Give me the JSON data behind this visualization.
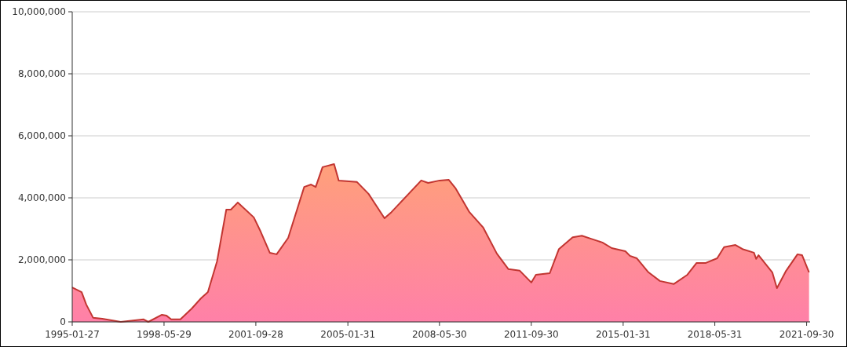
{
  "chart_data": {
    "type": "area",
    "x": [
      "1995-01-27",
      "1995-06",
      "1995-08",
      "1995-11",
      "1996-03",
      "1996-11",
      "1997-09",
      "1997-11",
      "1998-05",
      "1998-07",
      "1998-09",
      "1999-01",
      "1999-06",
      "1999-10",
      "2000-01",
      "2000-05",
      "2000-09",
      "2000-11",
      "2001-02",
      "2001-09",
      "2001-12",
      "2002-04",
      "2002-07",
      "2002-12",
      "2003-07",
      "2003-10",
      "2003-12",
      "2004-03",
      "2004-08",
      "2004-10",
      "2005-06",
      "2005-11",
      "2006-06",
      "2006-09",
      "2007-10",
      "2008-01",
      "2008-06",
      "2008-10",
      "2009-01",
      "2009-07",
      "2010-01",
      "2010-07",
      "2010-12",
      "2011-05",
      "2011-10",
      "2011-12",
      "2012-06",
      "2012-10",
      "2013-04",
      "2013-08",
      "2013-12",
      "2014-05",
      "2014-09",
      "2015-03",
      "2015-05",
      "2015-08",
      "2016-01",
      "2016-06",
      "2016-12",
      "2017-06",
      "2017-10",
      "2018-02",
      "2018-07",
      "2018-10",
      "2019-03",
      "2019-06",
      "2019-11",
      "2019-12",
      "2020-01",
      "2020-07",
      "2020-09",
      "2021-01",
      "2021-06",
      "2021-08",
      "2021-11"
    ],
    "series": [
      {
        "color": "#c23531",
        "values": [
          1110000,
          960000,
          560000,
          130000,
          100000,
          0,
          80000,
          0,
          230000,
          200000,
          80000,
          80000,
          430000,
          760000,
          960000,
          1950000,
          3620000,
          3620000,
          3850000,
          3370000,
          2910000,
          2230000,
          2180000,
          2710000,
          4350000,
          4430000,
          4350000,
          4990000,
          5090000,
          4560000,
          4510000,
          4130000,
          3340000,
          3540000,
          4560000,
          4480000,
          4560000,
          4580000,
          4300000,
          3540000,
          3040000,
          2200000,
          1700000,
          1650000,
          1270000,
          1520000,
          1570000,
          2350000,
          2730000,
          2780000,
          2680000,
          2560000,
          2380000,
          2280000,
          2130000,
          2050000,
          1600000,
          1320000,
          1220000,
          1520000,
          1900000,
          1900000,
          2050000,
          2410000,
          2480000,
          2350000,
          2230000,
          2030000,
          2150000,
          1600000,
          1090000,
          1650000,
          2180000,
          2150000,
          1600000
        ]
      }
    ],
    "xlim": [
      "1995-01-27",
      "2021-11-15"
    ],
    "xticks": [
      {
        "value": "1995-01-27",
        "label": "1995-01-27"
      },
      {
        "value": "1998-05-29",
        "label": "1998-05-29"
      },
      {
        "value": "2001-09-28",
        "label": "2001-09-28"
      },
      {
        "value": "2005-01-31",
        "label": "2005-01-31"
      },
      {
        "value": "2008-05-30",
        "label": "2008-05-30"
      },
      {
        "value": "2011-09-30",
        "label": "2011-09-30"
      },
      {
        "value": "2015-01-31",
        "label": "2015-01-31"
      },
      {
        "value": "2018-05-31",
        "label": "2018-05-31"
      },
      {
        "value": "2021-09-30",
        "label": "2021-09-30"
      }
    ],
    "ylim": [
      0,
      10000000
    ],
    "yticks": [
      0,
      {
        "value": 2000000,
        "label": "2,000,000"
      },
      {
        "value": 4000000,
        "label": "4,000,000"
      },
      {
        "value": 6000000,
        "label": "6,000,000"
      },
      {
        "value": 8000000,
        "label": "8,000,000"
      },
      {
        "value": 10000000,
        "label": "10,000,000"
      }
    ],
    "grid": "y"
  }
}
